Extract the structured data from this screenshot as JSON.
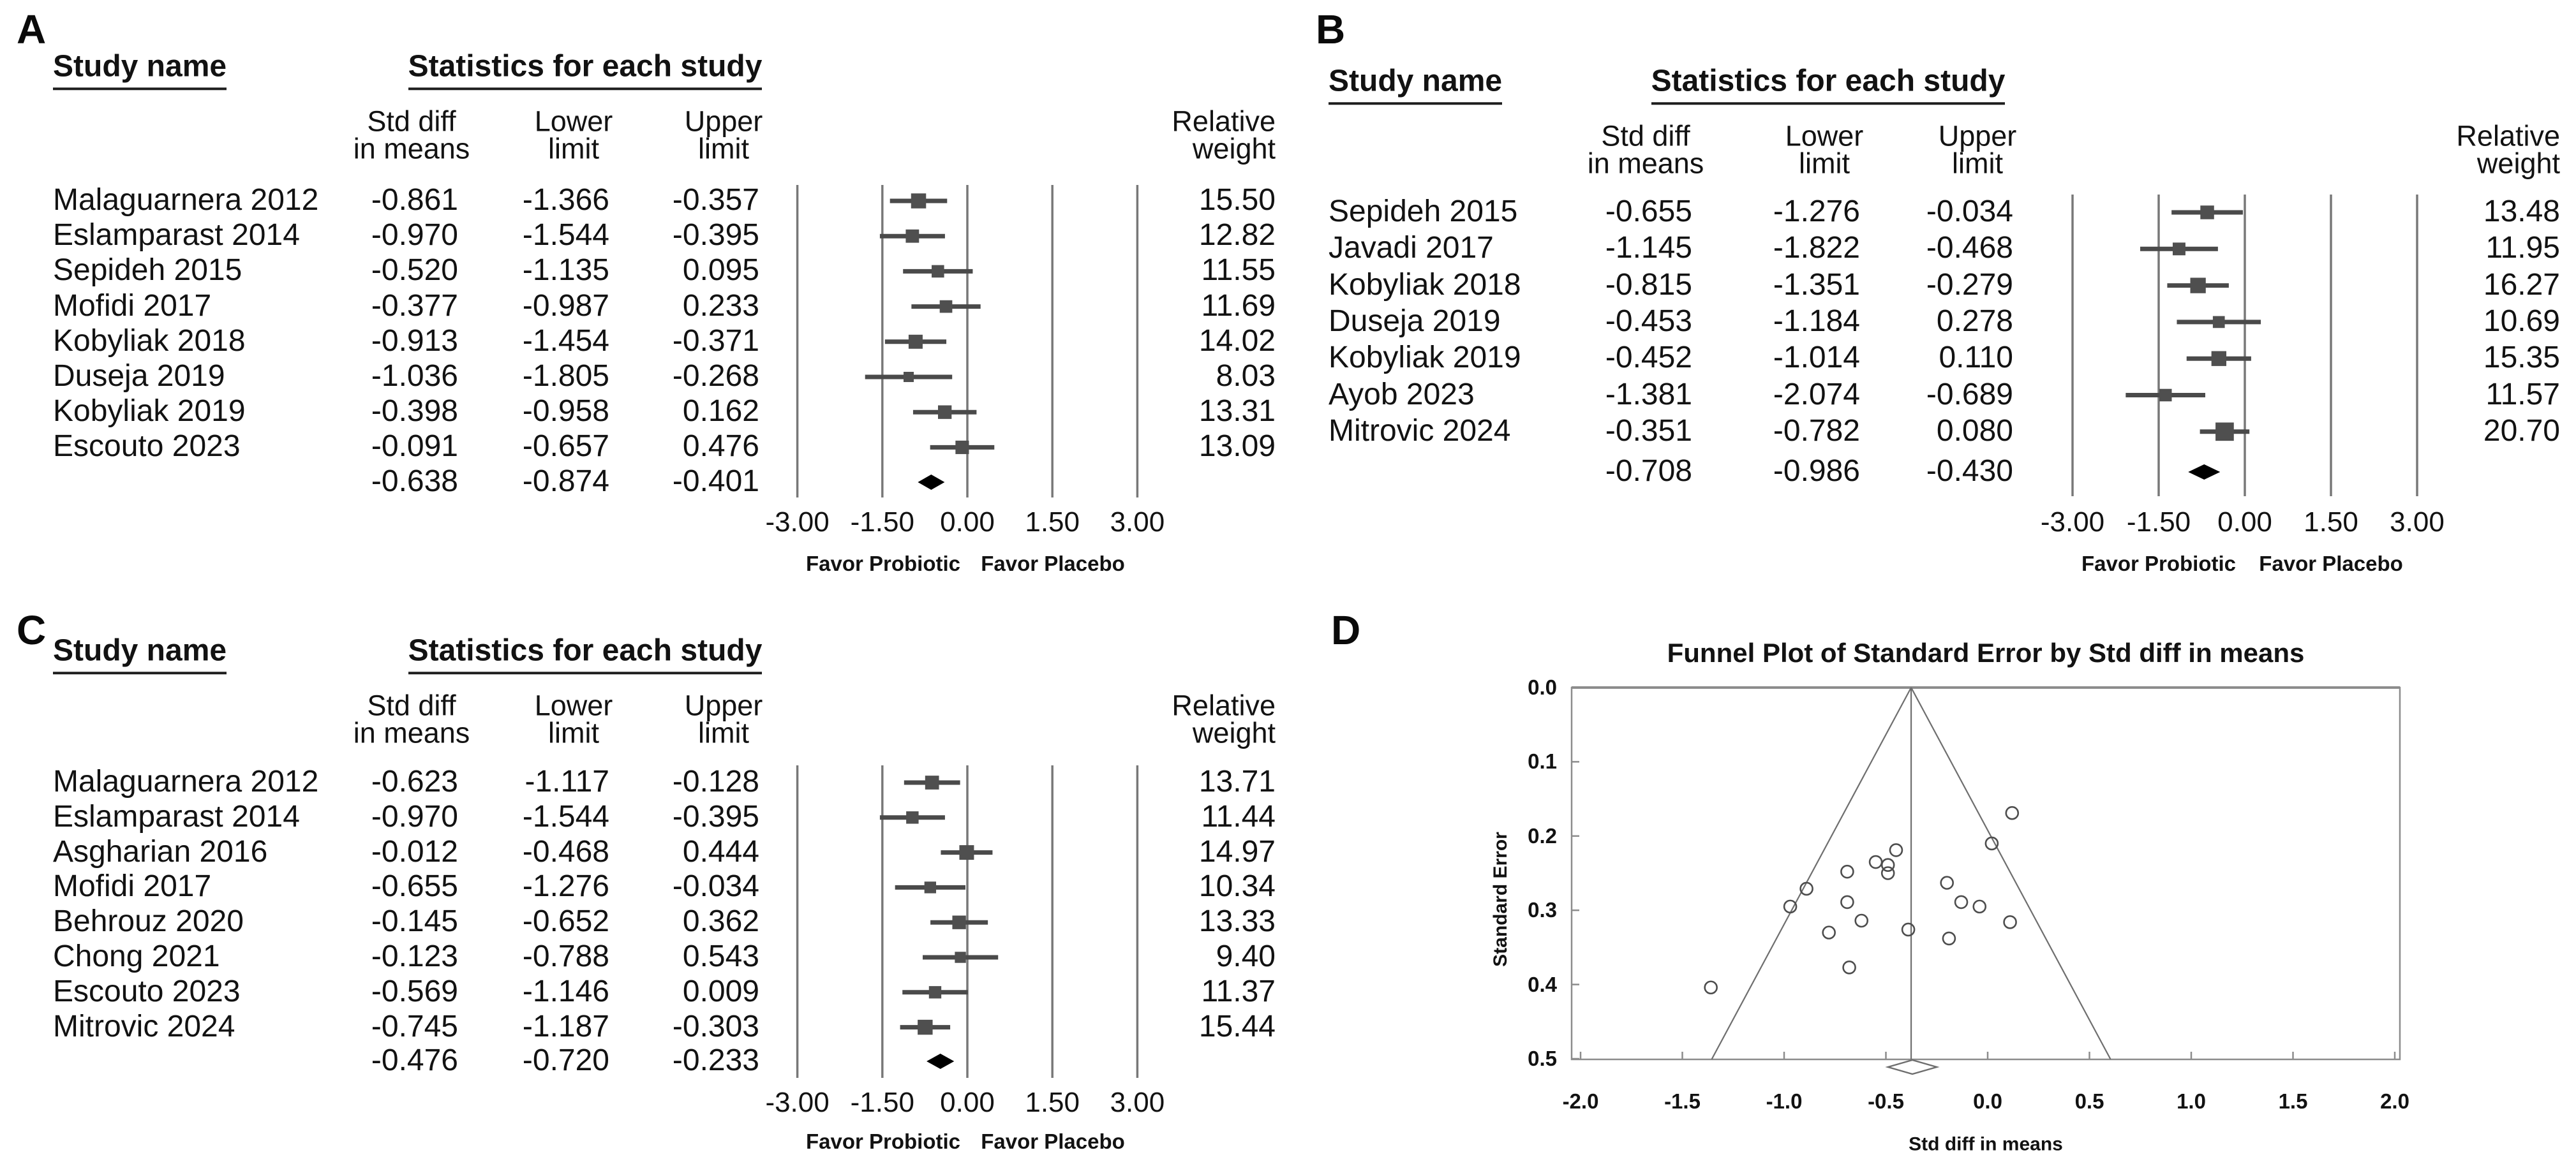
{
  "colors": {
    "text": "#121212",
    "marker_square": "#4f4f4f",
    "ci_line": "#4a4a4a",
    "gridline": "#787878",
    "summary_diamond": "#000000",
    "funnel_frame": "#8c8c8c",
    "funnel_line": "#6e6e6e",
    "funnel_circle": "#4d4d4d"
  },
  "forest_headers": {
    "study": "Study name",
    "stats": "Statistics for each study",
    "col1": [
      "Std diff",
      "in means"
    ],
    "col2": [
      "Lower",
      "limit"
    ],
    "col3": [
      "Upper",
      "limit"
    ],
    "weight": [
      "Relative",
      "weight"
    ],
    "favor_left": "Favor Probiotic",
    "favor_right": "Favor Placebo",
    "xtick_labels": [
      "-3.00",
      "-1.50",
      "0.00",
      "1.50",
      "3.00"
    ],
    "xtick_values": [
      -3,
      -1.5,
      0,
      1.5,
      3
    ]
  },
  "chart_data": [
    {
      "panel": "A",
      "type": "forest",
      "xlim": [
        -3,
        3
      ],
      "studies": [
        {
          "name": "Malaguarnera 2012",
          "std_diff": "-0.861",
          "lower": "-1.366",
          "upper": "-0.357",
          "weight": "15.50"
        },
        {
          "name": "Eslamparast 2014",
          "std_diff": "-0.970",
          "lower": "-1.544",
          "upper": "-0.395",
          "weight": "12.82"
        },
        {
          "name": "Sepideh 2015",
          "std_diff": "-0.520",
          "lower": "-1.135",
          "upper": "0.095",
          "weight": "11.55"
        },
        {
          "name": "Mofidi 2017",
          "std_diff": "-0.377",
          "lower": "-0.987",
          "upper": "0.233",
          "weight": "11.69"
        },
        {
          "name": "Kobyliak 2018",
          "std_diff": "-0.913",
          "lower": "-1.454",
          "upper": "-0.371",
          "weight": "14.02"
        },
        {
          "name": "Duseja 2019",
          "std_diff": "-1.036",
          "lower": "-1.805",
          "upper": "-0.268",
          "weight": "8.03"
        },
        {
          "name": "Kobyliak 2019",
          "std_diff": "-0.398",
          "lower": "-0.958",
          "upper": "0.162",
          "weight": "13.31"
        },
        {
          "name": "Escouto 2023",
          "std_diff": "-0.091",
          "lower": "-0.657",
          "upper": "0.476",
          "weight": "13.09"
        }
      ],
      "summary": {
        "std_diff": "-0.638",
        "lower": "-0.874",
        "upper": "-0.401"
      }
    },
    {
      "panel": "B",
      "type": "forest",
      "xlim": [
        -3,
        3
      ],
      "studies": [
        {
          "name": "Sepideh 2015",
          "std_diff": "-0.655",
          "lower": "-1.276",
          "upper": "-0.034",
          "weight": "13.48"
        },
        {
          "name": "Javadi 2017",
          "std_diff": "-1.145",
          "lower": "-1.822",
          "upper": "-0.468",
          "weight": "11.95"
        },
        {
          "name": "Kobyliak 2018",
          "std_diff": "-0.815",
          "lower": "-1.351",
          "upper": "-0.279",
          "weight": "16.27"
        },
        {
          "name": "Duseja 2019",
          "std_diff": "-0.453",
          "lower": "-1.184",
          "upper": "0.278",
          "weight": "10.69"
        },
        {
          "name": "Kobyliak 2019",
          "std_diff": "-0.452",
          "lower": "-1.014",
          "upper": "0.110",
          "weight": "15.35"
        },
        {
          "name": "Ayob 2023",
          "std_diff": "-1.381",
          "lower": "-2.074",
          "upper": "-0.689",
          "weight": "11.57"
        },
        {
          "name": "Mitrovic 2024",
          "std_diff": "-0.351",
          "lower": "-0.782",
          "upper": "0.080",
          "weight": "20.70"
        }
      ],
      "summary": {
        "std_diff": "-0.708",
        "lower": "-0.986",
        "upper": "-0.430"
      }
    },
    {
      "panel": "C",
      "type": "forest",
      "xlim": [
        -3,
        3
      ],
      "studies": [
        {
          "name": "Malaguarnera 2012",
          "std_diff": "-0.623",
          "lower": "-1.117",
          "upper": "-0.128",
          "weight": "13.71"
        },
        {
          "name": "Eslamparast 2014",
          "std_diff": "-0.970",
          "lower": "-1.544",
          "upper": "-0.395",
          "weight": "11.44"
        },
        {
          "name": "Asgharian 2016",
          "std_diff": "-0.012",
          "lower": "-0.468",
          "upper": "0.444",
          "weight": "14.97"
        },
        {
          "name": "Mofidi 2017",
          "std_diff": "-0.655",
          "lower": "-1.276",
          "upper": "-0.034",
          "weight": "10.34"
        },
        {
          "name": "Behrouz 2020",
          "std_diff": "-0.145",
          "lower": "-0.652",
          "upper": "0.362",
          "weight": "13.33"
        },
        {
          "name": "Chong 2021",
          "std_diff": "-0.123",
          "lower": "-0.788",
          "upper": "0.543",
          "weight": "9.40"
        },
        {
          "name": "Escouto 2023",
          "std_diff": "-0.569",
          "lower": "-1.146",
          "upper": "0.009",
          "weight": "11.37"
        },
        {
          "name": "Mitrovic 2024",
          "std_diff": "-0.745",
          "lower": "-1.187",
          "upper": "-0.303",
          "weight": "15.44"
        }
      ],
      "summary": {
        "std_diff": "-0.476",
        "lower": "-0.720",
        "upper": "-0.233"
      }
    },
    {
      "panel": "D",
      "type": "scatter-funnel",
      "title": "Funnel Plot of Standard Error by Std diff in means",
      "xlabel": "Std diff in means",
      "ylabel": "Standard Error",
      "xlim": [
        -2,
        2
      ],
      "ylim": [
        0,
        0.5
      ],
      "xtick_labels": [
        "-2.0",
        "-1.5",
        "-1.0",
        "-0.5",
        "0.0",
        "0.5",
        "1.0",
        "1.5",
        "2.0"
      ],
      "xtick_values": [
        -2,
        -1.5,
        -1,
        -0.5,
        0,
        0.5,
        1,
        1.5,
        2
      ],
      "ytick_labels": [
        "0.0",
        "0.1",
        "0.2",
        "0.3",
        "0.4",
        "0.5"
      ],
      "ytick_values": [
        0,
        0.1,
        0.2,
        0.3,
        0.4,
        0.5
      ],
      "center_effect": -0.376,
      "funnel_halfwidth_at_bottom": 0.98,
      "points": [
        {
          "x": 0.12,
          "se": 0.169
        },
        {
          "x": 0.02,
          "se": 0.21
        },
        {
          "x": -0.45,
          "se": 0.219
        },
        {
          "x": -0.55,
          "se": 0.235
        },
        {
          "x": -0.49,
          "se": 0.239
        },
        {
          "x": -0.69,
          "se": 0.248
        },
        {
          "x": -0.49,
          "se": 0.25
        },
        {
          "x": -0.2,
          "se": 0.263
        },
        {
          "x": -0.13,
          "se": 0.289
        },
        {
          "x": -0.04,
          "se": 0.295
        },
        {
          "x": -0.69,
          "se": 0.289
        },
        {
          "x": -0.62,
          "se": 0.314
        },
        {
          "x": 0.11,
          "se": 0.316
        },
        {
          "x": -0.78,
          "se": 0.33
        },
        {
          "x": -0.39,
          "se": 0.326
        },
        {
          "x": -0.19,
          "se": 0.338
        },
        {
          "x": -0.68,
          "se": 0.377
        },
        {
          "x": -0.89,
          "se": 0.271
        },
        {
          "x": -0.97,
          "se": 0.295
        },
        {
          "x": -1.36,
          "se": 0.404
        }
      ],
      "summary_diamond": {
        "x": -0.37,
        "half_width": 0.12,
        "se": 0.511
      }
    }
  ]
}
